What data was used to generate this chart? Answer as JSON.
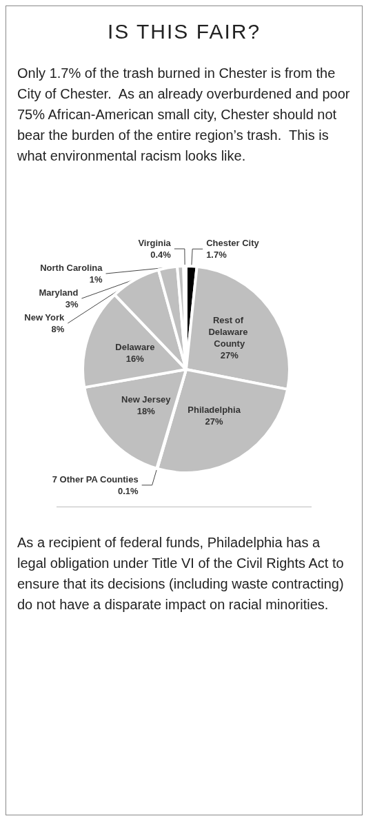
{
  "chart_data": {
    "type": "pie",
    "title": "IS THIS FAIR?",
    "categories": [
      "Chester City",
      "Rest of Delaware County",
      "Philadelphia",
      "7 Other PA Counties",
      "New Jersey",
      "Delaware",
      "New York",
      "Maryland",
      "North Carolina",
      "Virginia"
    ],
    "values": [
      1.7,
      27,
      27,
      0.1,
      18,
      16,
      8,
      3,
      1,
      0.4
    ],
    "colors": [
      "#000000",
      "#bfbfbf",
      "#bfbfbf",
      "#bfbfbf",
      "#bfbfbf",
      "#bfbfbf",
      "#bfbfbf",
      "#bfbfbf",
      "#bfbfbf",
      "#bfbfbf"
    ],
    "value_labels": [
      "1.7%",
      "27%",
      "27%",
      "0.1%",
      "18%",
      "16%",
      "8%",
      "3%",
      "1%",
      "0.4%"
    ],
    "legend": false,
    "annotations": [
      "Only 1.7% of the trash burned in Chester is from the City of Chester.  As an already overburdened and poor 75% African-American small city, Chester should not bear the burden of the entire region’s trash.  This is what environmental racism looks like.",
      "As a recipient of federal funds, Philadelphia has a legal obligation under Title VI of the Civil Rights Act to ensure that its decisions (including waste contracting) do not have a disparate impact on racial minorities."
    ]
  }
}
